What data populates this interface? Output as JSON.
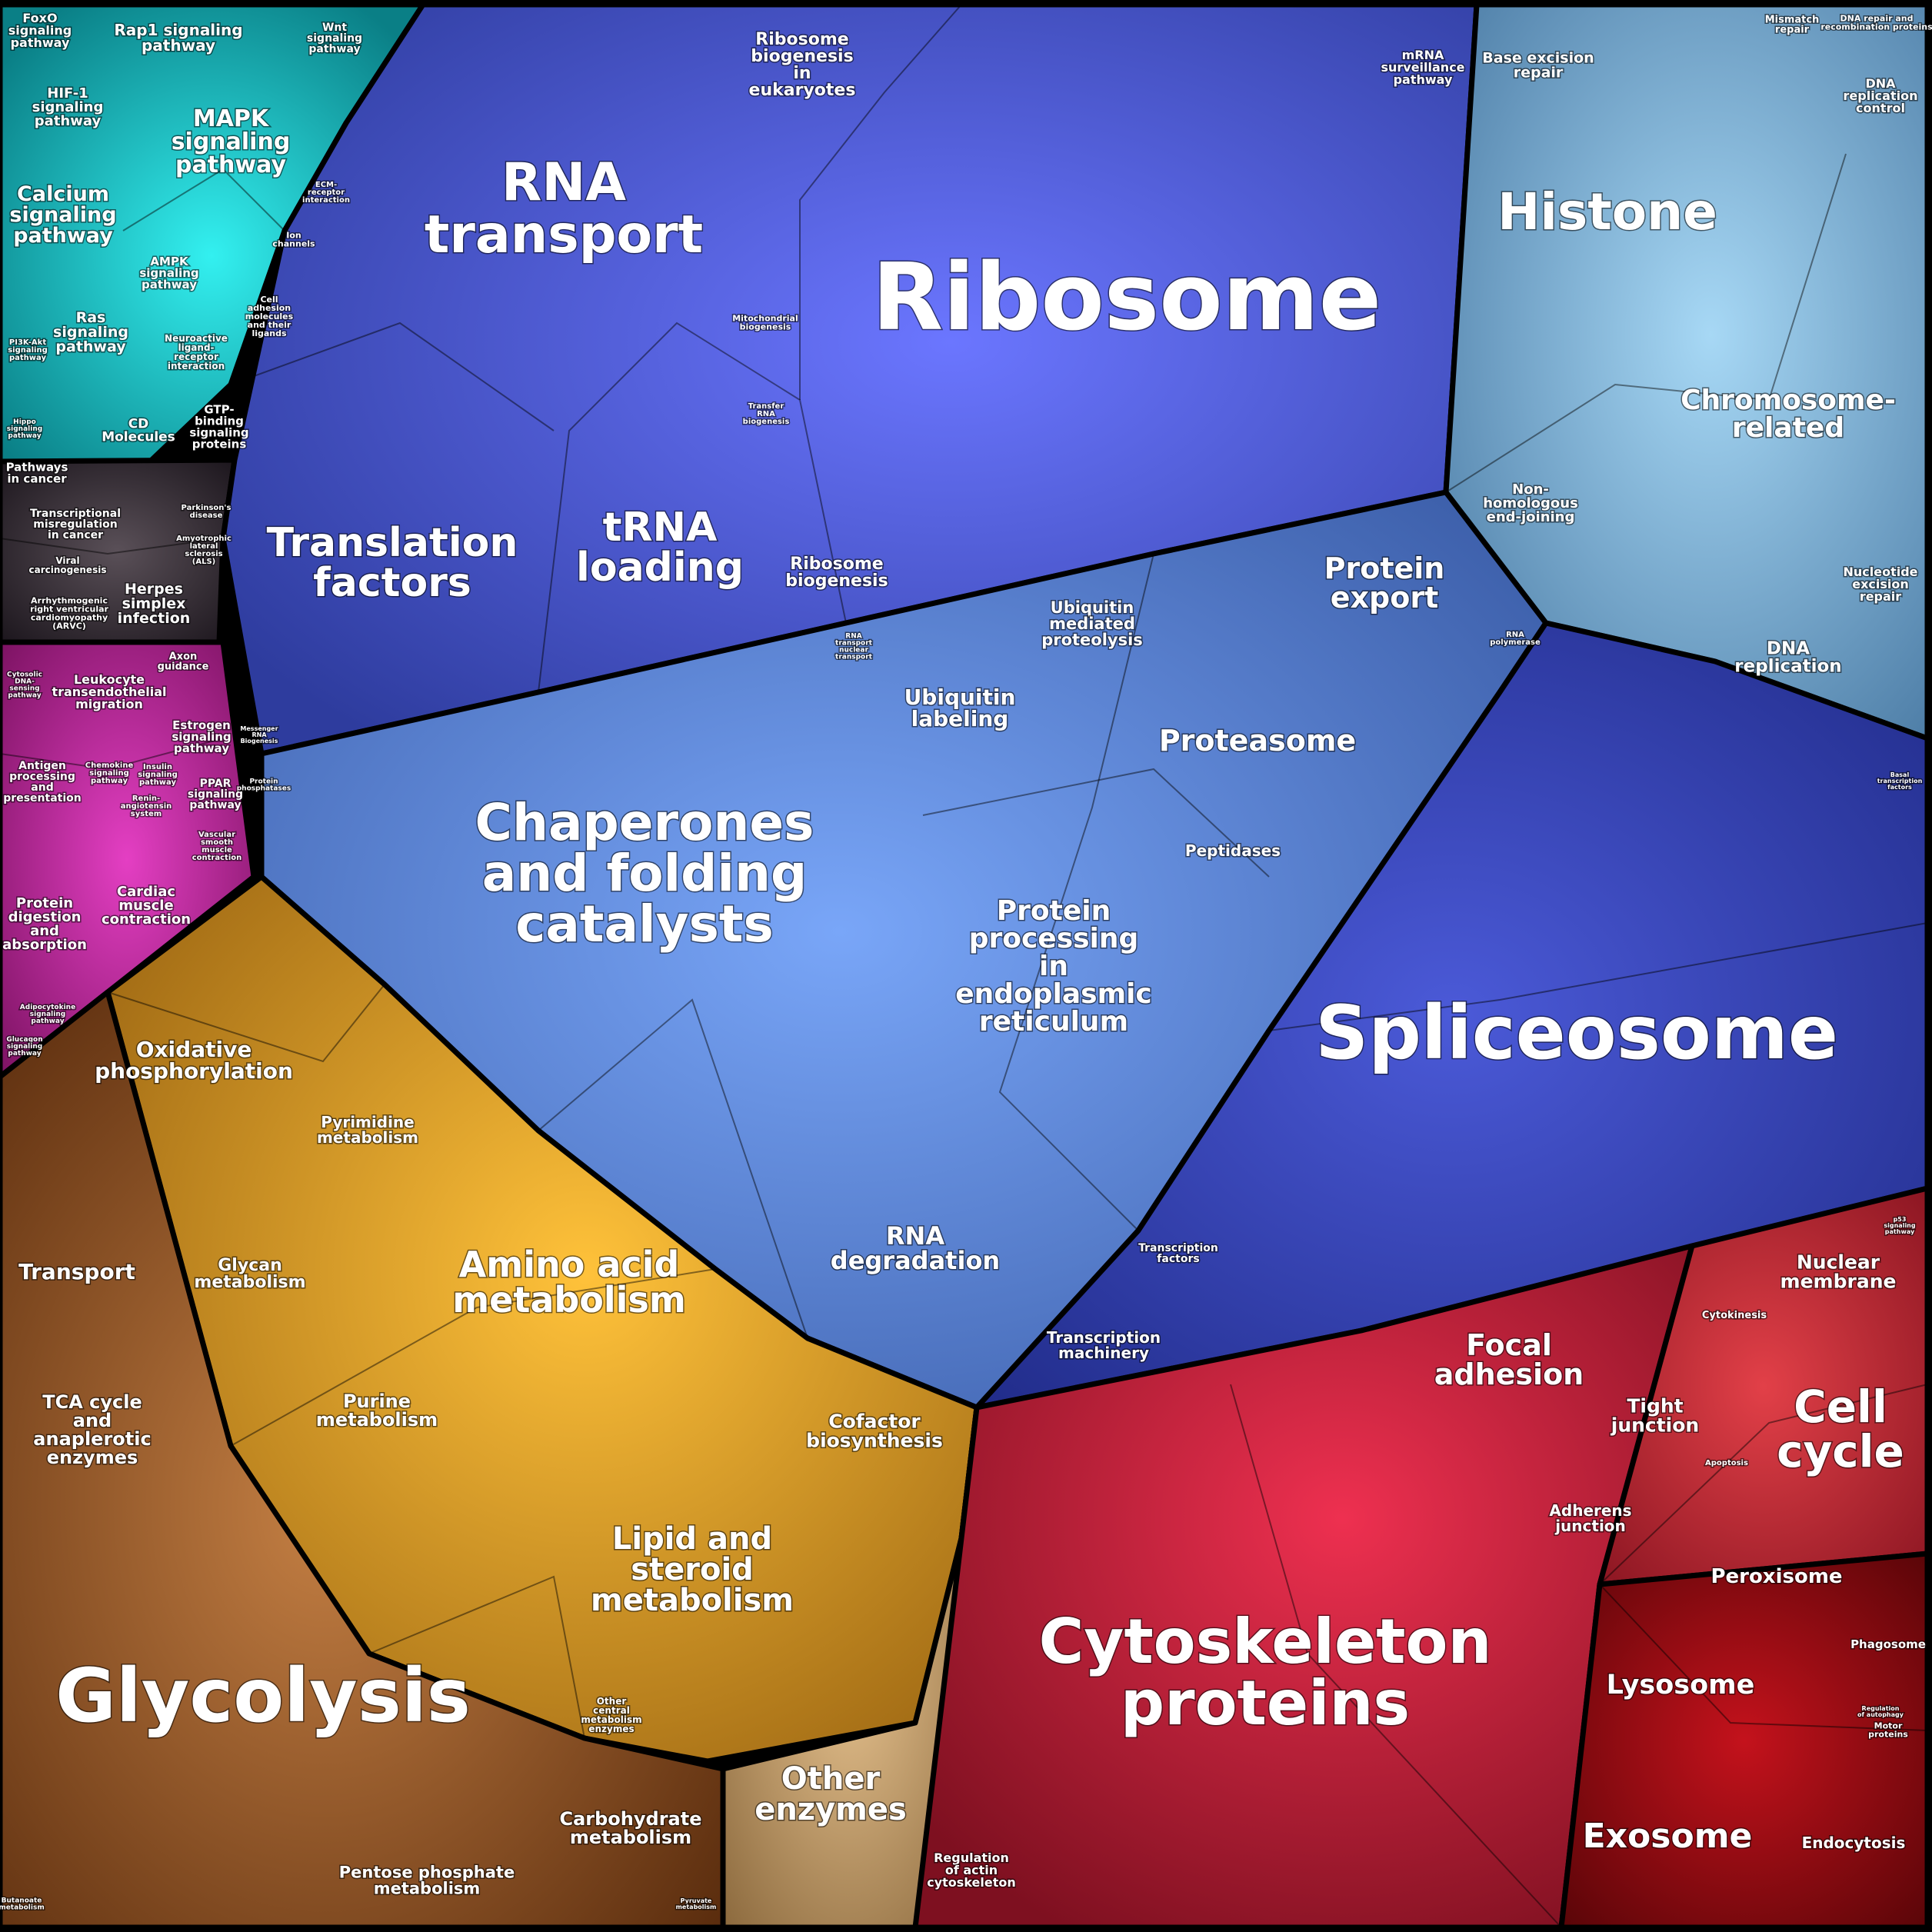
{
  "categories": [
    {
      "id": "signaling",
      "color": "#17b3b8"
    },
    {
      "id": "disease",
      "color": "#3a2f3a"
    },
    {
      "id": "organismal",
      "color": "#c22a9a"
    },
    {
      "id": "genetic_info",
      "color": "#4f63d8"
    },
    {
      "id": "folding_degradation",
      "color": "#5b8fe0"
    },
    {
      "id": "replication_repair",
      "color": "#7fb3dc"
    },
    {
      "id": "spliceosome",
      "color": "#3a4bc0"
    },
    {
      "id": "metabolism",
      "color": "#e3a52a"
    },
    {
      "id": "energy",
      "color": "#9c5a22"
    },
    {
      "id": "cellular",
      "color": "#c8253e"
    }
  ],
  "labels": {
    "ribosome": "Ribosome",
    "rna_transport": [
      "RNA",
      "transport"
    ],
    "ribosome_biogenesis_euk": [
      "Ribosome",
      "biogenesis",
      "in",
      "eukaryotes"
    ],
    "mrna_surveillance": [
      "mRNA",
      "surveillance",
      "pathway"
    ],
    "base_excision_repair": [
      "Base excision",
      "repair"
    ],
    "mismatch_repair": [
      "Mismatch",
      "repair"
    ],
    "dna_repair_recomb": [
      "DNA repair and",
      "recombination proteins"
    ],
    "dna_replication_control": [
      "DNA",
      "replication",
      "control"
    ],
    "histone": "Histone",
    "chromosome_related": [
      "Chromosome-",
      "related"
    ],
    "nhej": [
      "Non-",
      "homologous",
      "end-joining"
    ],
    "nucleotide_excision": [
      "Nucleotide",
      "excision",
      "repair"
    ],
    "dna_replication": [
      "DNA",
      "replication"
    ],
    "translation_factors": [
      "Translation",
      "factors"
    ],
    "trna_loading": [
      "tRNA",
      "loading"
    ],
    "ribosome_biogenesis": [
      "Ribosome",
      "biogenesis"
    ],
    "mitochondrial_biogenesis": [
      "Mitochondrial",
      "biogenesis"
    ],
    "transfer_rna_biogenesis": [
      "Transfer",
      "RNA",
      "biogenesis"
    ],
    "protein_export": [
      "Protein",
      "export"
    ],
    "ubiquitin_mediated": [
      "Ubiquitin",
      "mediated",
      "proteolysis"
    ],
    "ubiquitin_labeling": [
      "Ubiquitin",
      "labeling"
    ],
    "proteasome": "Proteasome",
    "peptidases": "Peptidases",
    "rna_polymerase": [
      "RNA",
      "polymerase"
    ],
    "chaperones": [
      "Chaperones",
      "and folding",
      "catalysts"
    ],
    "protein_processing_er": [
      "Protein",
      "processing",
      "in",
      "endoplasmic",
      "reticulum"
    ],
    "spliceosome": "Spliceosome",
    "rna_degradation": [
      "RNA",
      "degradation"
    ],
    "transcription_factors": [
      "Transcription",
      "factors"
    ],
    "transcription_machinery": [
      "Transcription",
      "machinery"
    ],
    "messenger_rna_biogenesis": [
      "Messenger",
      "RNA",
      "Biogenesis"
    ],
    "protein_phosphatases": [
      "Protein",
      "phosphatases"
    ],
    "basal_transcription": [
      "Basal",
      "transcription",
      "factors"
    ],
    "rna_nuclear_transport": [
      "RNA",
      "transport",
      "nuclear",
      "transport"
    ],
    "foxo": [
      "FoxO",
      "signaling",
      "pathway"
    ],
    "rap1": [
      "Rap1 signaling",
      "pathway"
    ],
    "wnt": [
      "Wnt",
      "signaling",
      "pathway"
    ],
    "hif1": [
      "HIF-1",
      "signaling",
      "pathway"
    ],
    "mapk": [
      "MAPK",
      "signaling",
      "pathway"
    ],
    "calcium": [
      "Calcium",
      "signaling",
      "pathway"
    ],
    "ampk": [
      "AMPK",
      "signaling",
      "pathway"
    ],
    "ras": [
      "Ras",
      "signaling",
      "pathway"
    ],
    "ion_channels": [
      "Ion",
      "channels"
    ],
    "ecm_receptor": [
      "ECM-",
      "receptor",
      "interaction"
    ],
    "cell_adhesion_molecules": [
      "Cell",
      "adhesion",
      "molecules",
      "and their",
      "ligands"
    ],
    "neuroactive": [
      "Neuroactive",
      "ligand-",
      "receptor",
      "interaction"
    ],
    "pi3k": [
      "PI3K-Akt",
      "signaling",
      "pathway"
    ],
    "cd_molecules": [
      "CD",
      "Molecules"
    ],
    "gtp_binding": [
      "GTP-",
      "binding",
      "signaling",
      "proteins"
    ],
    "hippo": [
      "Hippo",
      "signaling",
      "pathway"
    ],
    "pathways_in_cancer": [
      "Pathways",
      "in cancer"
    ],
    "transcriptional_misregulation": [
      "Transcriptional",
      "misregulation",
      "in cancer"
    ],
    "parkinsons": [
      "Parkinson's",
      "disease"
    ],
    "als": [
      "Amyotrophic",
      "lateral",
      "sclerosis",
      "(ALS)"
    ],
    "viral_carcinogenesis": [
      "Viral",
      "carcinogenesis"
    ],
    "arvc": [
      "Arrhythmogenic",
      "right ventricular",
      "cardiomyopathy",
      "(ARVC)"
    ],
    "herpes": [
      "Herpes",
      "simplex",
      "infection"
    ],
    "leukocyte": [
      "Leukocyte",
      "transendothelial",
      "migration"
    ],
    "axon_guidance": [
      "Axon",
      "guidance"
    ],
    "cytosolic_dna": [
      "Cytosolic",
      "DNA-",
      "sensing",
      "pathway"
    ],
    "estrogen": [
      "Estrogen",
      "signaling",
      "pathway"
    ],
    "antigen_processing": [
      "Antigen",
      "processing",
      "and",
      "presentation"
    ],
    "chemokine": [
      "Chemokine",
      "signaling",
      "pathway"
    ],
    "insulin": [
      "Insulin",
      "signaling",
      "pathway"
    ],
    "ppar": [
      "PPAR",
      "signaling",
      "pathway"
    ],
    "renin": [
      "Renin-",
      "angiotensin",
      "system"
    ],
    "vascular": [
      "Vascular",
      "smooth",
      "muscle",
      "contraction"
    ],
    "cardiac_muscle": [
      "Cardiac",
      "muscle",
      "contraction"
    ],
    "protein_digestion": [
      "Protein",
      "digestion",
      "and",
      "absorption"
    ],
    "adipocytokine": [
      "Adipocytokine",
      "signaling",
      "pathway"
    ],
    "glucagon": [
      "Glucagon",
      "signaling",
      "pathway"
    ],
    "oxidative_phosphorylation": [
      "Oxidative",
      "phosphorylation"
    ],
    "pyrimidine": [
      "Pyrimidine",
      "metabolism"
    ],
    "transport": "Transport",
    "glycan": [
      "Glycan",
      "metabolism"
    ],
    "amino_acid": [
      "Amino acid",
      "metabolism"
    ],
    "purine": [
      "Purine",
      "metabolism"
    ],
    "tca": [
      "TCA cycle",
      "and",
      "anaplerotic",
      "enzymes"
    ],
    "cofactor": [
      "Cofactor",
      "biosynthesis"
    ],
    "lipid": [
      "Lipid and",
      "steroid",
      "metabolism"
    ],
    "glycolysis": "Glycolysis",
    "other_central": [
      "Other",
      "central",
      "metabolism",
      "enzymes"
    ],
    "carbohydrate": [
      "Carbohydrate",
      "metabolism"
    ],
    "pentose": [
      "Pentose phosphate",
      "metabolism"
    ],
    "butanoate": [
      "Butanoate",
      "metabolism"
    ],
    "pyruvate": [
      "Pyruvate",
      "metabolism"
    ],
    "other_enzymes": [
      "Other",
      "enzymes"
    ],
    "cytoskeleton": [
      "Cytoskeleton",
      "proteins"
    ],
    "regulation_actin": [
      "Regulation",
      "of actin",
      "cytoskeleton"
    ],
    "focal_adhesion": [
      "Focal",
      "adhesion"
    ],
    "tight_junction": [
      "Tight",
      "junction"
    ],
    "adherens": [
      "Adherens",
      "junction"
    ],
    "nuclear_membrane": [
      "Nuclear",
      "membrane"
    ],
    "cytokinesis": "Cytokinesis",
    "cell_cycle": [
      "Cell",
      "cycle"
    ],
    "apoptosis": "Apoptosis",
    "p53": [
      "p53",
      "signaling",
      "pathway"
    ],
    "peroxisome": "Peroxisome",
    "phagosome": "Phagosome",
    "lysosome": "Lysosome",
    "regulation_autophagy": [
      "Regulation",
      "of autophagy"
    ],
    "motor_proteins": [
      "Motor",
      "proteins"
    ],
    "exosome": "Exosome",
    "endocytosis": "Endocytosis"
  }
}
